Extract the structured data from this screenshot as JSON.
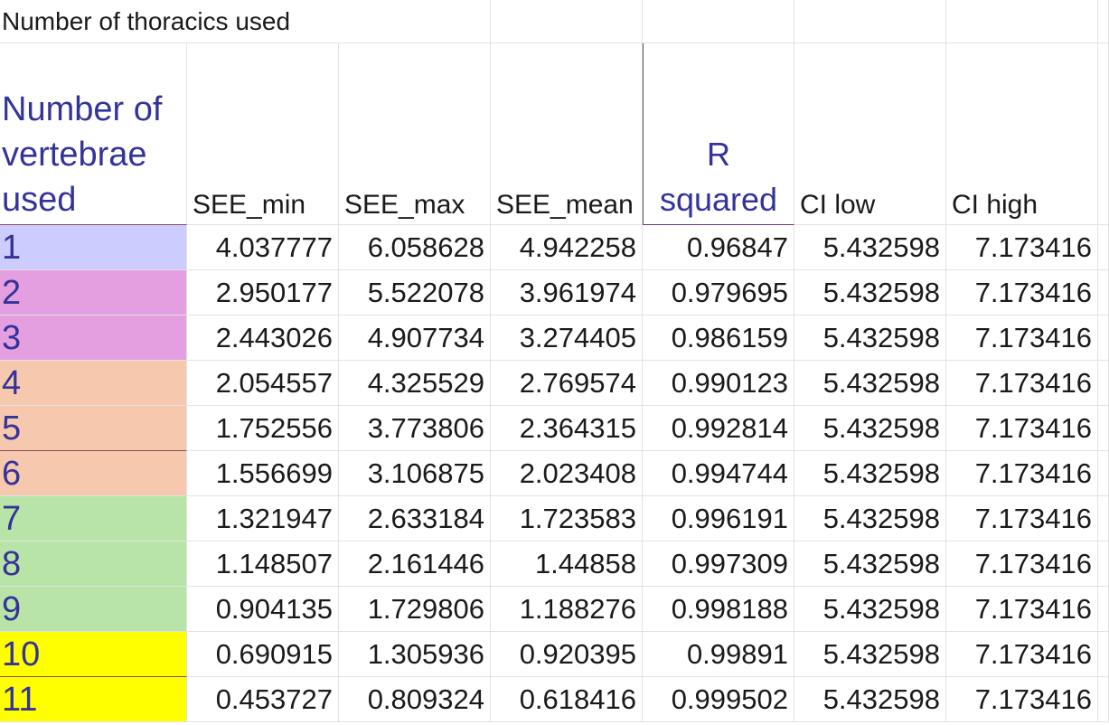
{
  "title": "Number of thoracics used",
  "headers": {
    "n": "Number of vertebrae used",
    "see_min": "SEE_min",
    "see_max": "SEE_max",
    "see_mean": "SEE_mean",
    "r_squared_line1": "R",
    "r_squared_line2": "squared",
    "ci_low": "CI low",
    "ci_high": "CI high"
  },
  "row_colors": {
    "blue": "#ccccff",
    "pink": "#e39fdf",
    "peach": "#f6c8ae",
    "green": "#b8e4a7",
    "yellow": "#ffff00"
  },
  "rows": [
    {
      "n": "1",
      "see_min": "4.037777",
      "see_max": "6.058628",
      "see_mean": "4.942258",
      "r2": "0.96847",
      "ci_low": "5.432598",
      "ci_high": "7.173416"
    },
    {
      "n": "2",
      "see_min": "2.950177",
      "see_max": "5.522078",
      "see_mean": "3.961974",
      "r2": "0.979695",
      "ci_low": "5.432598",
      "ci_high": "7.173416"
    },
    {
      "n": "3",
      "see_min": "2.443026",
      "see_max": "4.907734",
      "see_mean": "3.274405",
      "r2": "0.986159",
      "ci_low": "5.432598",
      "ci_high": "7.173416"
    },
    {
      "n": "4",
      "see_min": "2.054557",
      "see_max": "4.325529",
      "see_mean": "2.769574",
      "r2": "0.990123",
      "ci_low": "5.432598",
      "ci_high": "7.173416"
    },
    {
      "n": "5",
      "see_min": "1.752556",
      "see_max": "3.773806",
      "see_mean": "2.364315",
      "r2": "0.992814",
      "ci_low": "5.432598",
      "ci_high": "7.173416"
    },
    {
      "n": "6",
      "see_min": "1.556699",
      "see_max": "3.106875",
      "see_mean": "2.023408",
      "r2": "0.994744",
      "ci_low": "5.432598",
      "ci_high": "7.173416"
    },
    {
      "n": "7",
      "see_min": "1.321947",
      "see_max": "2.633184",
      "see_mean": "1.723583",
      "r2": "0.996191",
      "ci_low": "5.432598",
      "ci_high": "7.173416"
    },
    {
      "n": "8",
      "see_min": "1.148507",
      "see_max": "2.161446",
      "see_mean": "1.44858",
      "r2": "0.997309",
      "ci_low": "5.432598",
      "ci_high": "7.173416"
    },
    {
      "n": "9",
      "see_min": "0.904135",
      "see_max": "1.729806",
      "see_mean": "1.188276",
      "r2": "0.998188",
      "ci_low": "5.432598",
      "ci_high": "7.173416"
    },
    {
      "n": "10",
      "see_min": "0.690915",
      "see_max": "1.305936",
      "see_mean": "0.920395",
      "r2": "0.99891",
      "ci_low": "5.432598",
      "ci_high": "7.173416"
    },
    {
      "n": "11",
      "see_min": "0.453727",
      "see_max": "0.809324",
      "see_mean": "0.618416",
      "r2": "0.999502",
      "ci_low": "5.432598",
      "ci_high": "7.173416"
    }
  ]
}
